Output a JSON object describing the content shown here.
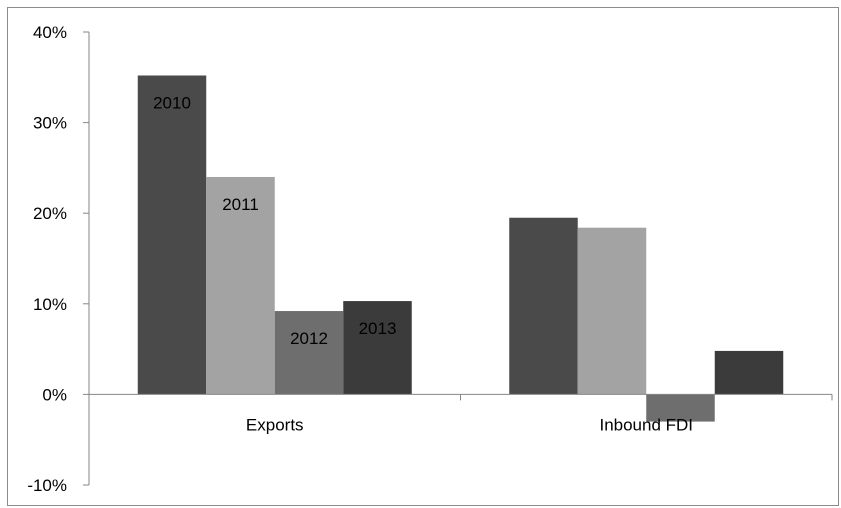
{
  "chart_data": {
    "type": "bar",
    "categories": [
      "Exports",
      "Inbound FDI"
    ],
    "series": [
      {
        "name": "2010",
        "values": [
          35.2,
          19.5
        ],
        "color": "#4a4a4a"
      },
      {
        "name": "2011",
        "values": [
          24.0,
          18.4
        ],
        "color": "#a3a3a3"
      },
      {
        "name": "2012",
        "values": [
          9.2,
          -3.0
        ],
        "color": "#6e6e6e"
      },
      {
        "name": "2013",
        "values": [
          10.3,
          4.8
        ],
        "color": "#3b3b3b"
      }
    ],
    "data_labels": [
      {
        "series": 0,
        "category": 0,
        "text": "2010"
      },
      {
        "series": 1,
        "category": 0,
        "text": "2011"
      },
      {
        "series": 2,
        "category": 0,
        "text": "2012"
      },
      {
        "series": 3,
        "category": 0,
        "text": "2013"
      }
    ],
    "ylim": [
      -10,
      40
    ],
    "yticks": [
      -10,
      0,
      10,
      20,
      30,
      40
    ],
    "ytick_labels": [
      "-10%",
      "0%",
      "10%",
      "20%",
      "30%",
      "40%"
    ],
    "grid": false,
    "legend": "none",
    "title": "",
    "xlabel": "",
    "ylabel": ""
  }
}
